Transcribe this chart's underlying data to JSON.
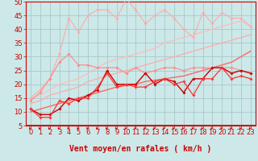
{
  "xlabel": "Vent moyen/en rafales ( km/h )",
  "xlim": [
    -0.5,
    23.5
  ],
  "ylim": [
    5,
    50
  ],
  "yticks": [
    5,
    10,
    15,
    20,
    25,
    30,
    35,
    40,
    45,
    50
  ],
  "xticks": [
    0,
    1,
    2,
    3,
    4,
    5,
    6,
    7,
    8,
    9,
    10,
    11,
    12,
    13,
    14,
    15,
    16,
    17,
    18,
    19,
    20,
    21,
    22,
    23
  ],
  "bg_color": "#cce8e8",
  "grid_color": "#aac8c8",
  "arrow_color": "#cc0000",
  "xlabel_color": "#cc0000",
  "tick_color": "#cc0000",
  "xlabel_fontsize": 7,
  "tick_fontsize": 6,
  "series": {
    "pink_jagged": [
      15,
      18,
      22,
      31,
      44,
      39,
      45,
      47,
      47,
      44,
      51,
      47,
      42,
      45,
      47,
      44,
      40,
      37,
      46,
      42,
      46,
      44,
      44,
      41
    ],
    "pink_lower": [
      14,
      17,
      22,
      28,
      31,
      27,
      27,
      26,
      26,
      26,
      24,
      26,
      24,
      25,
      26,
      26,
      25,
      26,
      26,
      26,
      26,
      26,
      25,
      24
    ],
    "straight_top": [
      15,
      16,
      18,
      20,
      21,
      22,
      24,
      26,
      28,
      29,
      30,
      31,
      32,
      33,
      35,
      36,
      37,
      38,
      39,
      40,
      41,
      42,
      43,
      41
    ],
    "straight_mid": [
      13,
      14,
      16,
      17,
      18,
      19,
      21,
      22,
      23,
      24,
      25,
      26,
      27,
      28,
      29,
      30,
      31,
      32,
      33,
      34,
      35,
      36,
      37,
      38
    ],
    "straight_low": [
      10,
      11,
      12,
      13,
      14,
      15,
      16,
      17,
      18,
      19,
      19.5,
      20,
      21,
      21.5,
      22,
      22.5,
      23,
      24,
      25,
      26,
      27,
      28,
      30,
      32
    ],
    "dark_jagged": [
      11,
      9,
      9,
      11,
      15,
      14,
      16,
      18,
      25,
      20,
      20,
      20,
      24,
      20,
      22,
      21,
      17,
      22,
      22,
      26,
      26,
      24,
      25,
      24
    ],
    "red_jagged": [
      11,
      8,
      8,
      14,
      13,
      15,
      15,
      19,
      24,
      19,
      20,
      19,
      19,
      21,
      22,
      20,
      21,
      16,
      22,
      22,
      26,
      22,
      23,
      22
    ]
  },
  "colors": {
    "pink_jagged": "#ffaaaa",
    "pink_lower": "#ff8888",
    "straight_top": "#ffbbbb",
    "straight_mid": "#ffaaaa",
    "straight_low": "#ff6666",
    "dark_jagged": "#cc0000",
    "red_jagged": "#ff3333"
  }
}
